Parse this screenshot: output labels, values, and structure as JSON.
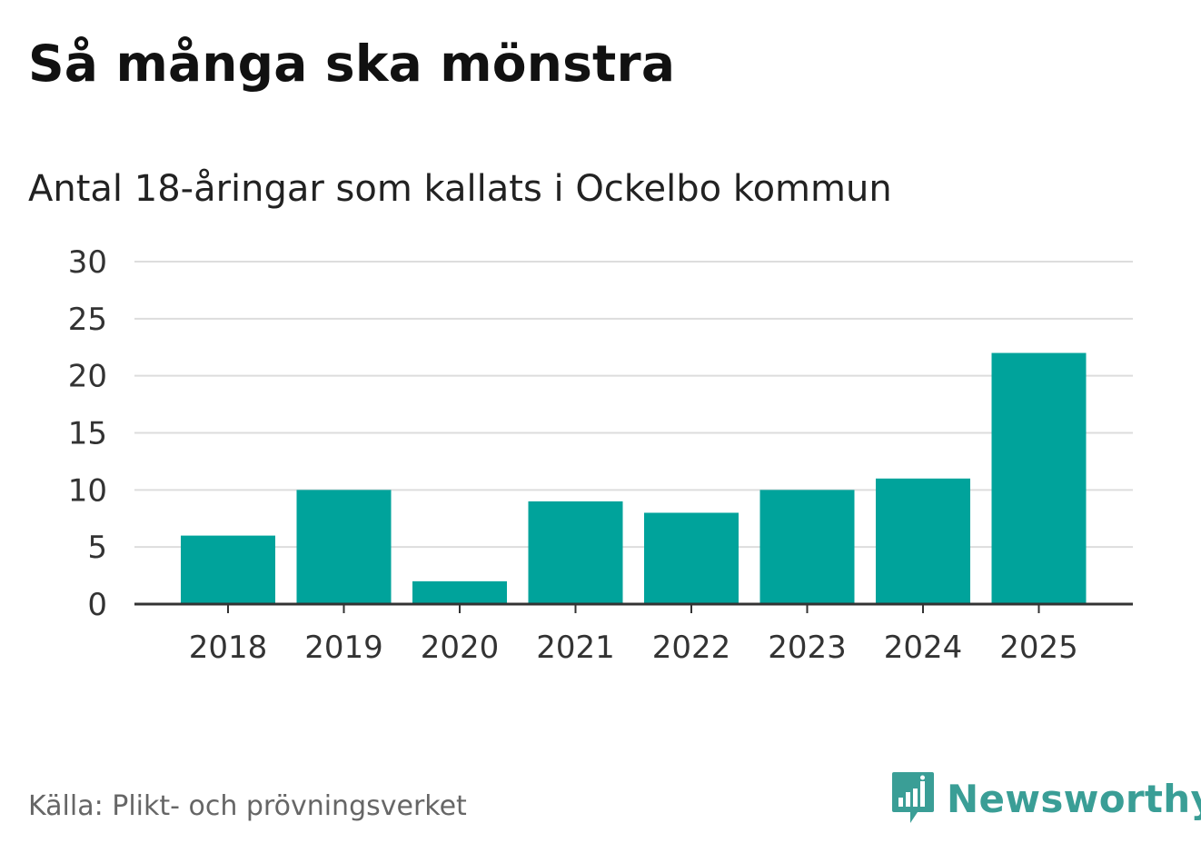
{
  "title": "Så många ska mönstra",
  "subtitle": "Antal 18-åringar som kallats i Ockelbo kommun",
  "source": "Källa: Plikt- och prövningsverket",
  "brand": "Newsworthy",
  "colors": {
    "bar": "#00a39b",
    "grid": "#dddddd",
    "axis": "#333333",
    "brand": "#3a9e96"
  },
  "chart_data": {
    "type": "bar",
    "title": "Så många ska mönstra",
    "subtitle": "Antal 18-åringar som kallats i Ockelbo kommun",
    "categories": [
      "2018",
      "2019",
      "2020",
      "2021",
      "2022",
      "2023",
      "2024",
      "2025"
    ],
    "values": [
      6,
      10,
      2,
      9,
      8,
      10,
      11,
      22
    ],
    "xlabel": "",
    "ylabel": "",
    "ylim": [
      0,
      30
    ],
    "yticks": [
      "0",
      "5",
      "10",
      "15",
      "20",
      "25",
      "30"
    ],
    "grid": true,
    "legend": "none"
  }
}
